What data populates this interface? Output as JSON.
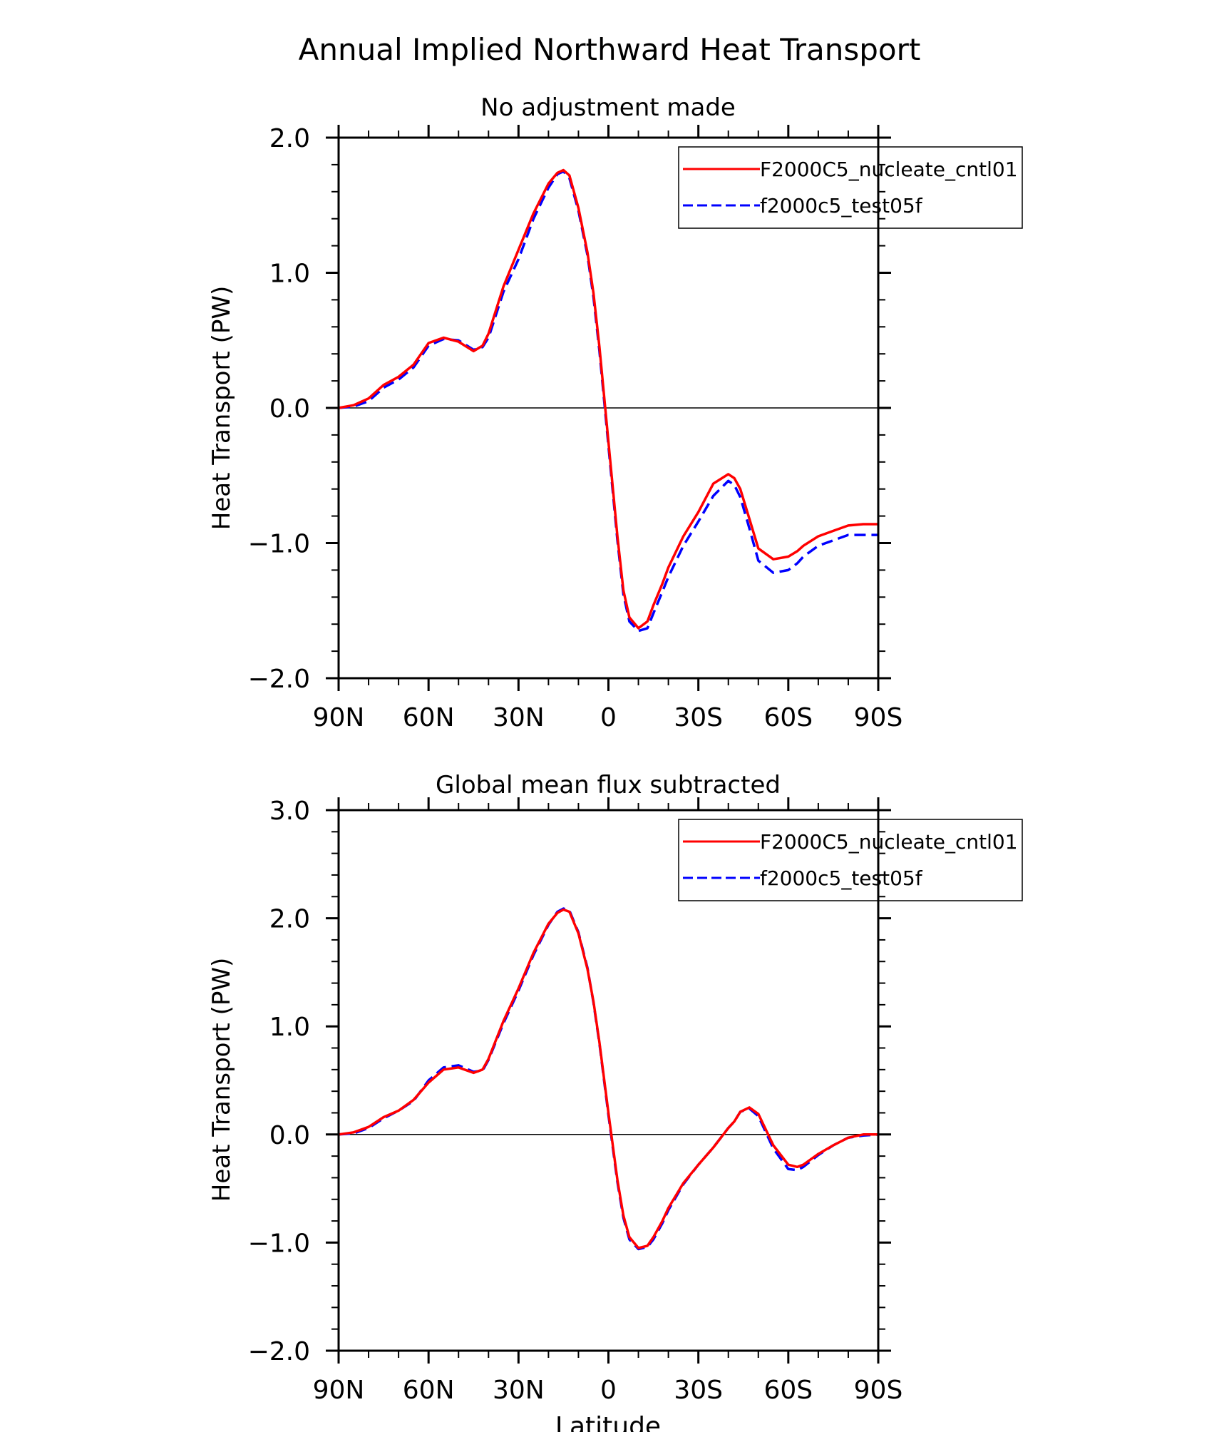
{
  "figure_title": "Annual Implied Northward Heat Transport",
  "x_axis_label": "Latitude",
  "colors": {
    "cntl": "#ff0000",
    "test": "#0000ff",
    "axis": "#000000"
  },
  "chart_data": [
    {
      "type": "line",
      "title": "No adjustment made",
      "xlabel": "",
      "ylabel": "Heat Transport (PW)",
      "xlim": [
        90,
        -90
      ],
      "ylim": [
        -2.0,
        2.0
      ],
      "x_ticks": [
        90,
        60,
        30,
        0,
        -30,
        -60,
        -90
      ],
      "x_tick_labels": [
        "90N",
        "60N",
        "30N",
        "0",
        "30S",
        "60S",
        "90S"
      ],
      "y_ticks": [
        -2.0,
        -1.0,
        0.0,
        1.0,
        2.0
      ],
      "y_tick_labels": [
        "-2.0",
        "-1.0",
        "0.0",
        "1.0",
        "2.0"
      ],
      "zero_line": true,
      "legend": "top-right",
      "x": [
        90,
        85,
        80,
        75,
        70,
        65,
        60,
        55,
        50,
        45,
        42,
        40,
        35,
        30,
        25,
        20,
        17,
        15,
        13,
        10,
        7,
        5,
        3,
        0,
        -3,
        -5,
        -7,
        -10,
        -13,
        -15,
        -18,
        -20,
        -25,
        -30,
        -35,
        -40,
        -42,
        -44,
        -47,
        -50,
        -55,
        -60,
        -63,
        -65,
        -70,
        -75,
        -80,
        -85,
        -90
      ],
      "series": [
        {
          "name": "F2000C5_nucleate_cntl01",
          "color": "#ff0000",
          "dash": "solid",
          "values": [
            0.0,
            0.02,
            0.07,
            0.17,
            0.23,
            0.32,
            0.48,
            0.52,
            0.49,
            0.42,
            0.46,
            0.55,
            0.9,
            1.17,
            1.44,
            1.66,
            1.74,
            1.76,
            1.72,
            1.48,
            1.15,
            0.85,
            0.45,
            -0.25,
            -0.95,
            -1.35,
            -1.55,
            -1.63,
            -1.58,
            -1.46,
            -1.3,
            -1.18,
            -0.95,
            -0.77,
            -0.56,
            -0.49,
            -0.52,
            -0.6,
            -0.82,
            -1.04,
            -1.12,
            -1.1,
            -1.06,
            -1.02,
            -0.95,
            -0.91,
            -0.87,
            -0.86,
            -0.86
          ]
        },
        {
          "name": "f2000c5_test05f",
          "color": "#0000ff",
          "dash": "dashed",
          "values": [
            0.0,
            0.01,
            0.05,
            0.15,
            0.21,
            0.3,
            0.46,
            0.51,
            0.5,
            0.43,
            0.45,
            0.52,
            0.86,
            1.1,
            1.4,
            1.63,
            1.73,
            1.75,
            1.7,
            1.46,
            1.13,
            0.82,
            0.42,
            -0.28,
            -0.98,
            -1.38,
            -1.58,
            -1.65,
            -1.63,
            -1.52,
            -1.36,
            -1.25,
            -1.02,
            -0.84,
            -0.65,
            -0.54,
            -0.57,
            -0.66,
            -0.89,
            -1.13,
            -1.22,
            -1.2,
            -1.15,
            -1.1,
            -1.02,
            -0.98,
            -0.94,
            -0.94,
            -0.94
          ]
        }
      ]
    },
    {
      "type": "line",
      "title": "Global mean flux subtracted",
      "xlabel": "Latitude",
      "ylabel": "Heat Transport (PW)",
      "xlim": [
        90,
        -90
      ],
      "ylim": [
        -2.0,
        3.0
      ],
      "x_ticks": [
        90,
        60,
        30,
        0,
        -30,
        -60,
        -90
      ],
      "x_tick_labels": [
        "90N",
        "60N",
        "30N",
        "0",
        "30S",
        "60S",
        "90S"
      ],
      "y_ticks": [
        -2.0,
        -1.0,
        0.0,
        1.0,
        2.0,
        3.0
      ],
      "y_tick_labels": [
        "-2.0",
        "-1.0",
        "0.0",
        "1.0",
        "2.0",
        "3.0"
      ],
      "zero_line": true,
      "legend": "top-right",
      "x": [
        90,
        85,
        80,
        75,
        70,
        65,
        60,
        55,
        50,
        45,
        42,
        40,
        35,
        30,
        25,
        20,
        17,
        15,
        13,
        10,
        7,
        5,
        3,
        0,
        -3,
        -5,
        -7,
        -10,
        -13,
        -15,
        -18,
        -20,
        -25,
        -30,
        -35,
        -40,
        -42,
        -44,
        -47,
        -50,
        -55,
        -60,
        -63,
        -65,
        -70,
        -75,
        -80,
        -85,
        -90
      ],
      "series": [
        {
          "name": "F2000C5_nucleate_cntl01",
          "color": "#ff0000",
          "dash": "solid",
          "values": [
            0.0,
            0.02,
            0.07,
            0.16,
            0.22,
            0.32,
            0.48,
            0.6,
            0.62,
            0.57,
            0.6,
            0.7,
            1.05,
            1.35,
            1.68,
            1.95,
            2.05,
            2.08,
            2.06,
            1.86,
            1.53,
            1.23,
            0.85,
            0.2,
            -0.42,
            -0.75,
            -0.95,
            -1.05,
            -1.03,
            -0.95,
            -0.8,
            -0.68,
            -0.45,
            -0.28,
            -0.12,
            0.06,
            0.12,
            0.21,
            0.25,
            0.19,
            -0.1,
            -0.28,
            -0.3,
            -0.28,
            -0.18,
            -0.1,
            -0.03,
            0.0,
            0.0
          ]
        },
        {
          "name": "f2000c5_test05f",
          "color": "#0000ff",
          "dash": "dashed",
          "values": [
            0.0,
            0.01,
            0.06,
            0.15,
            0.22,
            0.31,
            0.5,
            0.62,
            0.64,
            0.58,
            0.59,
            0.69,
            1.03,
            1.33,
            1.66,
            1.94,
            2.06,
            2.09,
            2.07,
            1.87,
            1.54,
            1.22,
            0.84,
            0.18,
            -0.44,
            -0.77,
            -0.97,
            -1.06,
            -1.04,
            -0.97,
            -0.82,
            -0.7,
            -0.46,
            -0.28,
            -0.12,
            0.06,
            0.12,
            0.21,
            0.24,
            0.17,
            -0.13,
            -0.32,
            -0.33,
            -0.3,
            -0.19,
            -0.1,
            -0.03,
            -0.01,
            0.0
          ]
        }
      ]
    }
  ]
}
